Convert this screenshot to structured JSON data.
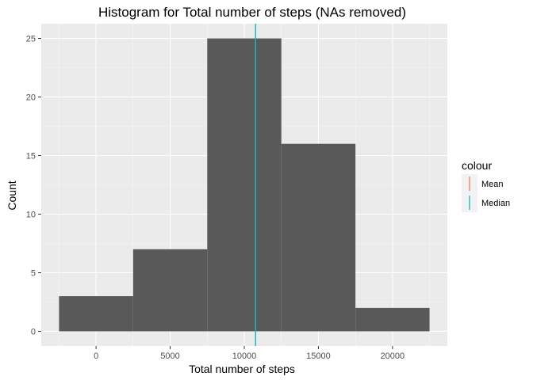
{
  "chart_data": {
    "type": "bar",
    "title": "Histogram for Total number of steps (NAs removed)",
    "xlabel": "Total number of steps",
    "ylabel": "Count",
    "bins": [
      {
        "start": -2500,
        "end": 2500,
        "count": 3
      },
      {
        "start": 2500,
        "end": 7500,
        "count": 7
      },
      {
        "start": 7500,
        "end": 12500,
        "count": 25
      },
      {
        "start": 12500,
        "end": 17500,
        "count": 16
      },
      {
        "start": 17500,
        "end": 22500,
        "count": 2
      }
    ],
    "xlim": [
      -3700,
      23700
    ],
    "ylim": [
      -1.25,
      26.25
    ],
    "x_ticks": [
      0,
      5000,
      10000,
      15000,
      20000
    ],
    "x_tick_labels": [
      "0",
      "5000",
      "10000",
      "15000",
      "20000"
    ],
    "y_ticks": [
      0,
      5,
      10,
      15,
      20,
      25
    ],
    "y_tick_labels": [
      "0",
      "5",
      "10",
      "15",
      "20",
      "25"
    ],
    "reference_lines": [
      {
        "name": "Mean",
        "x": 10766,
        "color": "#F8766D"
      },
      {
        "name": "Median",
        "x": 10765,
        "color": "#00BFC4"
      }
    ],
    "bar_color": "#595959",
    "panel_background": "#EBEBEB",
    "grid": true,
    "legend": {
      "title": "colour",
      "position": "right",
      "entries": [
        {
          "label": "Mean",
          "color": "#F8766D"
        },
        {
          "label": "Median",
          "color": "#00BFC4"
        }
      ]
    }
  }
}
